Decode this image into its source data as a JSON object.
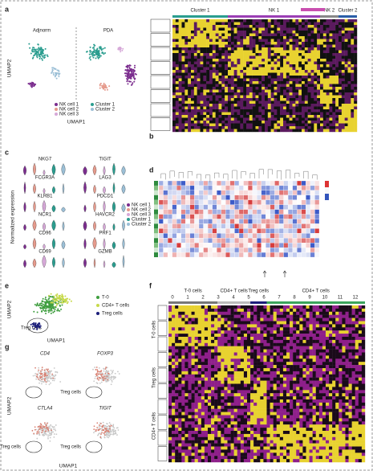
{
  "panels": {
    "a": {
      "label": "a",
      "groups": [
        "Adjnorm",
        "PDA"
      ],
      "x_label": "UMAP1",
      "y_label": "UMAP2",
      "legend": [
        {
          "name": "NK cell 1",
          "color": "#7b2d8e"
        },
        {
          "name": "NK cell 2",
          "color": "#e59a8c"
        },
        {
          "name": "NK cell 3",
          "color": "#d6a8d8"
        },
        {
          "name": "Cluster 1",
          "color": "#2a9d8f"
        },
        {
          "name": "Cluster 2",
          "color": "#9bbfd6"
        }
      ]
    },
    "b": {
      "label": "b",
      "columns": [
        "Cluster 1",
        "NK 1",
        "NK 2",
        "Cluster 2"
      ]
    },
    "c": {
      "label": "c",
      "y_label": "Normalized expression",
      "genes": [
        "NKG7",
        "TIGIT",
        "FCGR3A",
        "LAG3",
        "KLRB1",
        "PDCD1",
        "NCR1",
        "HAVCR2",
        "CD96",
        "PRF1",
        "CD69",
        "GZMB"
      ]
    },
    "d": {
      "label": "d"
    },
    "e": {
      "label": "e",
      "x_label": "UMAP1",
      "y_label": "UMAP2",
      "annotation": "Treg cells",
      "legend": [
        "T-0",
        "CD4+ T cells",
        "Treg cells"
      ]
    },
    "f": {
      "label": "f",
      "groups": [
        "T-0 cells",
        "CD4+ T cells",
        "Treg cells",
        "CD4+ T cells"
      ],
      "clusters": [
        "0",
        "1",
        "2",
        "3",
        "4",
        "5",
        "6",
        "7",
        "8",
        "9",
        "10",
        "11",
        "12"
      ],
      "row_groups": [
        "T-0 cells",
        "Treg cells",
        "CD4+ T cells"
      ]
    },
    "g": {
      "label": "g",
      "genes": [
        "CD4",
        "FOXP3",
        "CTLA4",
        "TIGIT"
      ],
      "annotation": "Treg cells",
      "x_label": "UMAP1",
      "y_label": "UMAP2"
    }
  }
}
